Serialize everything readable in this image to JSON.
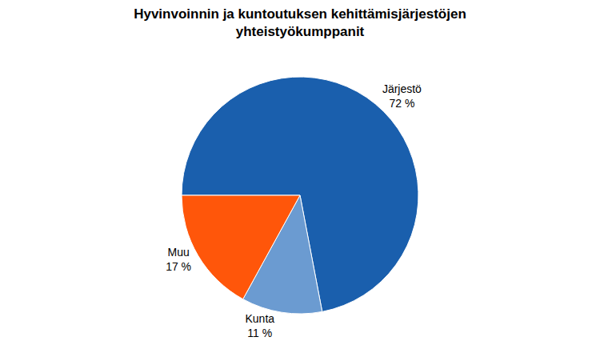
{
  "chart_data": {
    "type": "pie",
    "title": "Hyvinvoinnin ja kuntoutuksen kehittämisjärjestöjen\nyhteistyökumppanit",
    "categories": [
      "Järjestö",
      "Kunta",
      "Muu"
    ],
    "values": [
      72,
      11,
      17
    ],
    "value_labels": [
      "72 %",
      "11 %",
      "17 %"
    ],
    "colors": [
      "#1a5fad",
      "#6b9bd1",
      "#ff560a"
    ],
    "data_labels": true,
    "legend": false
  }
}
